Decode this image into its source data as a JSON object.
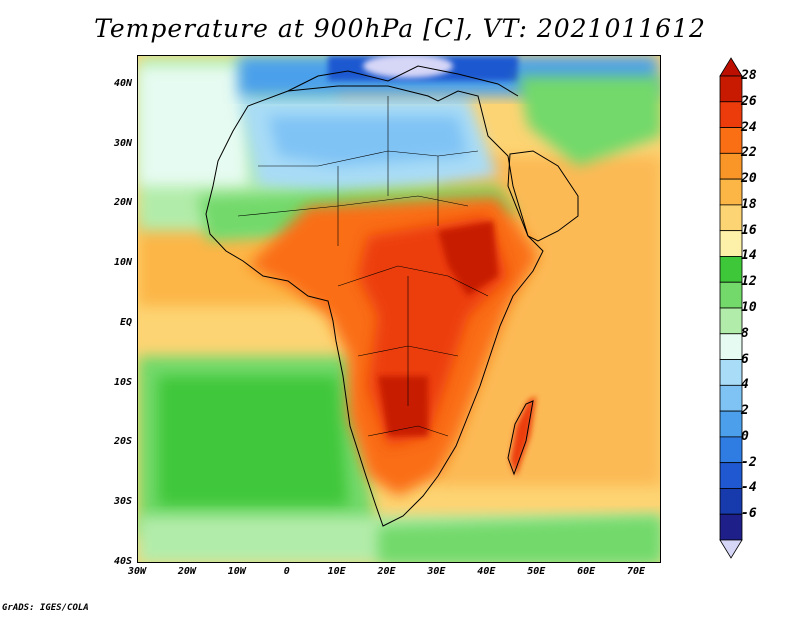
{
  "title": "Temperature at 900hPa [C], VT: 2021011612",
  "credit": "GrADS: IGES/COLA",
  "lat_ticks": [
    "40N",
    "30N",
    "20N",
    "10N",
    "EQ",
    "10S",
    "20S",
    "30S",
    "40S"
  ],
  "lon_ticks": [
    "30W",
    "20W",
    "10W",
    "0",
    "10E",
    "20E",
    "30E",
    "40E",
    "50E",
    "60E",
    "70E"
  ],
  "colorbar": {
    "labels": [
      "28",
      "26",
      "24",
      "22",
      "20",
      "18",
      "16",
      "14",
      "12",
      "10",
      "8",
      "6",
      "4",
      "2",
      "0",
      "-2",
      "-4",
      "-6"
    ],
    "colors": [
      "#c81a00",
      "#ec3c0c",
      "#fa6e14",
      "#f99627",
      "#fcb646",
      "#fdd473",
      "#fdf0a8",
      "#3fc73a",
      "#72d96a",
      "#b2ecaa",
      "#e6fbf1",
      "#a9dcf6",
      "#7fc3f5",
      "#4ca0eb",
      "#2f7ce2",
      "#1f58d0",
      "#173aac",
      "#1e1f88"
    ],
    "top_arrow_color": "#bd0f00",
    "bottom_arrow_color": "#d6d6f7"
  },
  "map": {
    "ocean_colors": {
      "north_atlantic": "#a0e8d0",
      "south_atlantic": "#66cc5e",
      "indian_ocean": "#fcba55",
      "sahara": "#8ec8f0",
      "mediterranean": "#3a66d8"
    }
  }
}
